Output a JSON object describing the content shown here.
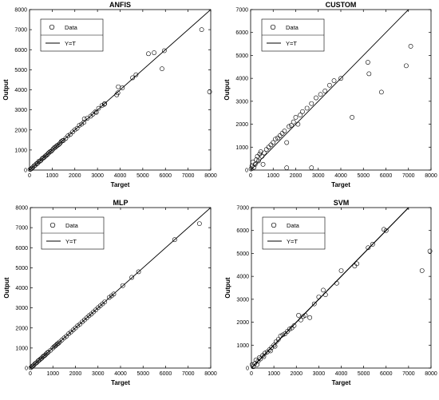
{
  "chart_data": [
    {
      "type": "scatter",
      "title": "ANFIS",
      "xlabel": "Target",
      "ylabel": "Output",
      "xlim": [
        0,
        8000
      ],
      "ylim": [
        0,
        8000
      ],
      "xticks": [
        "0",
        "1000",
        "2000",
        "3000",
        "4000",
        "5000",
        "6000",
        "7000",
        "8000"
      ],
      "yticks": [
        "0",
        "1000",
        "2000",
        "3000",
        "4000",
        "5000",
        "6000",
        "7000",
        "8000"
      ],
      "grid": false,
      "legend": {
        "placement": "top-left",
        "boxed": true,
        "entries": [
          "Data",
          "Y=T"
        ]
      },
      "series": [
        {
          "name": "Data",
          "marker": "open-circle",
          "points": [
            [
              20,
              30
            ],
            [
              60,
              50
            ],
            [
              100,
              90
            ],
            [
              150,
              140
            ],
            [
              200,
              210
            ],
            [
              250,
              240
            ],
            [
              300,
              310
            ],
            [
              350,
              330
            ],
            [
              400,
              420
            ],
            [
              450,
              440
            ],
            [
              500,
              480
            ],
            [
              550,
              560
            ],
            [
              600,
              600
            ],
            [
              650,
              640
            ],
            [
              700,
              700
            ],
            [
              750,
              740
            ],
            [
              800,
              790
            ],
            [
              850,
              860
            ],
            [
              900,
              910
            ],
            [
              950,
              930
            ],
            [
              1000,
              990
            ],
            [
              1050,
              1060
            ],
            [
              1100,
              1120
            ],
            [
              1150,
              1140
            ],
            [
              1200,
              1210
            ],
            [
              1250,
              1240
            ],
            [
              1300,
              1280
            ],
            [
              1350,
              1340
            ],
            [
              1400,
              1420
            ],
            [
              1450,
              1460
            ],
            [
              1500,
              1480
            ],
            [
              1600,
              1580
            ],
            [
              1700,
              1710
            ],
            [
              1800,
              1780
            ],
            [
              1900,
              1900
            ],
            [
              2000,
              2010
            ],
            [
              2100,
              2080
            ],
            [
              2200,
              2230
            ],
            [
              2300,
              2290
            ],
            [
              2400,
              2380
            ],
            [
              2420,
              2550
            ],
            [
              2550,
              2580
            ],
            [
              2700,
              2690
            ],
            [
              2800,
              2790
            ],
            [
              2900,
              2900
            ],
            [
              2950,
              2880
            ],
            [
              3050,
              3080
            ],
            [
              3200,
              3220
            ],
            [
              3300,
              3280
            ],
            [
              3320,
              3310
            ],
            [
              3850,
              3750
            ],
            [
              3900,
              3850
            ],
            [
              3920,
              4150
            ],
            [
              4100,
              4100
            ],
            [
              4550,
              4600
            ],
            [
              4700,
              4750
            ],
            [
              5250,
              5800
            ],
            [
              5500,
              5850
            ],
            [
              5850,
              5050
            ],
            [
              5950,
              5950
            ],
            [
              7600,
              7000
            ],
            [
              7950,
              3900
            ]
          ]
        },
        {
          "name": "Y=T",
          "line": [
            [
              0,
              0
            ],
            [
              8000,
              8000
            ]
          ]
        }
      ]
    },
    {
      "type": "scatter",
      "title": "CUSTOM",
      "xlabel": "Target",
      "ylabel": "Output",
      "xlim": [
        0,
        8000
      ],
      "ylim": [
        0,
        7000
      ],
      "xticks": [
        "0",
        "1000",
        "2000",
        "3000",
        "4000",
        "5000",
        "6000",
        "7000",
        "8000"
      ],
      "yticks": [
        "0",
        "1000",
        "2000",
        "3000",
        "4000",
        "5000",
        "6000",
        "7000"
      ],
      "grid": false,
      "legend": {
        "placement": "top-left",
        "boxed": true,
        "entries": [
          "Data",
          "Y=T"
        ]
      },
      "series": [
        {
          "name": "Data",
          "marker": "open-circle",
          "points": [
            [
              20,
              50
            ],
            [
              60,
              180
            ],
            [
              100,
              350
            ],
            [
              150,
              120
            ],
            [
              200,
              250
            ],
            [
              250,
              450
            ],
            [
              300,
              600
            ],
            [
              350,
              400
            ],
            [
              400,
              700
            ],
            [
              450,
              800
            ],
            [
              500,
              600
            ],
            [
              550,
              250
            ],
            [
              600,
              750
            ],
            [
              700,
              900
            ],
            [
              800,
              1000
            ],
            [
              900,
              1100
            ],
            [
              1000,
              1200
            ],
            [
              1100,
              1350
            ],
            [
              1200,
              1400
            ],
            [
              1300,
              1500
            ],
            [
              1400,
              1600
            ],
            [
              1500,
              1700
            ],
            [
              1600,
              1200
            ],
            [
              1700,
              1900
            ],
            [
              1800,
              1950
            ],
            [
              1900,
              2100
            ],
            [
              2000,
              2300
            ],
            [
              2100,
              2000
            ],
            [
              2200,
              2400
            ],
            [
              2300,
              2550
            ],
            [
              2500,
              2700
            ],
            [
              2700,
              2900
            ],
            [
              2900,
              3150
            ],
            [
              3100,
              3300
            ],
            [
              3300,
              3450
            ],
            [
              3500,
              3700
            ],
            [
              3700,
              3900
            ],
            [
              4000,
              4000
            ],
            [
              4500,
              2300
            ],
            [
              5200,
              4700
            ],
            [
              5250,
              4200
            ],
            [
              5800,
              3400
            ],
            [
              6900,
              4550
            ],
            [
              7100,
              5400
            ],
            [
              1600,
              100
            ],
            [
              2700,
              100
            ]
          ]
        },
        {
          "name": "Y=T",
          "line": [
            [
              0,
              0
            ],
            [
              7000,
              7000
            ]
          ]
        }
      ]
    },
    {
      "type": "scatter",
      "title": "MLP",
      "xlabel": "Target",
      "ylabel": "Output",
      "xlim": [
        0,
        8000
      ],
      "ylim": [
        0,
        8000
      ],
      "xticks": [
        "0",
        "1000",
        "2000",
        "3000",
        "4000",
        "5000",
        "6000",
        "7000",
        "8000"
      ],
      "yticks": [
        "0",
        "1000",
        "2000",
        "3000",
        "4000",
        "5000",
        "6000",
        "7000",
        "8000"
      ],
      "grid": false,
      "legend": {
        "placement": "top-left",
        "boxed": true,
        "entries": [
          "Data",
          "Y=T"
        ]
      },
      "series": [
        {
          "name": "Data",
          "marker": "open-circle",
          "points": [
            [
              20,
              20
            ],
            [
              60,
              60
            ],
            [
              100,
              100
            ],
            [
              150,
              140
            ],
            [
              200,
              210
            ],
            [
              250,
              250
            ],
            [
              300,
              290
            ],
            [
              350,
              360
            ],
            [
              400,
              400
            ],
            [
              450,
              450
            ],
            [
              500,
              490
            ],
            [
              550,
              560
            ],
            [
              600,
              600
            ],
            [
              650,
              640
            ],
            [
              700,
              700
            ],
            [
              750,
              760
            ],
            [
              800,
              800
            ],
            [
              900,
              890
            ],
            [
              1000,
              1000
            ],
            [
              1050,
              1060
            ],
            [
              1100,
              1100
            ],
            [
              1150,
              1150
            ],
            [
              1200,
              1210
            ],
            [
              1250,
              1240
            ],
            [
              1300,
              1300
            ],
            [
              1400,
              1400
            ],
            [
              1500,
              1500
            ],
            [
              1600,
              1590
            ],
            [
              1700,
              1710
            ],
            [
              1800,
              1800
            ],
            [
              1900,
              1900
            ],
            [
              2000,
              2000
            ],
            [
              2100,
              2110
            ],
            [
              2200,
              2190
            ],
            [
              2300,
              2300
            ],
            [
              2400,
              2400
            ],
            [
              2500,
              2500
            ],
            [
              2600,
              2610
            ],
            [
              2700,
              2690
            ],
            [
              2800,
              2800
            ],
            [
              2900,
              2900
            ],
            [
              3000,
              3010
            ],
            [
              3100,
              3100
            ],
            [
              3200,
              3200
            ],
            [
              3300,
              3300
            ],
            [
              3500,
              3520
            ],
            [
              3600,
              3600
            ],
            [
              3700,
              3690
            ],
            [
              4100,
              4110
            ],
            [
              4500,
              4520
            ],
            [
              4800,
              4800
            ],
            [
              6400,
              6400
            ],
            [
              7500,
              7200
            ]
          ]
        },
        {
          "name": "Y=T",
          "line": [
            [
              0,
              0
            ],
            [
              8000,
              8000
            ]
          ]
        }
      ]
    },
    {
      "type": "scatter",
      "title": "SVM",
      "xlabel": "Target",
      "ylabel": "Output",
      "xlim": [
        0,
        8000
      ],
      "ylim": [
        0,
        7000
      ],
      "xticks": [
        "0",
        "1000",
        "2000",
        "3000",
        "4000",
        "5000",
        "6000",
        "7000",
        "8000"
      ],
      "yticks": [
        "0",
        "1000",
        "2000",
        "3000",
        "4000",
        "5000",
        "6000",
        "7000"
      ],
      "grid": false,
      "legend": {
        "placement": "top-left",
        "boxed": true,
        "entries": [
          "Data",
          "Y=T"
        ]
      },
      "series": [
        {
          "name": "Data",
          "marker": "open-circle",
          "points": [
            [
              30,
              150
            ],
            [
              80,
              60
            ],
            [
              150,
              200
            ],
            [
              200,
              350
            ],
            [
              250,
              150
            ],
            [
              300,
              300
            ],
            [
              350,
              450
            ],
            [
              400,
              400
            ],
            [
              500,
              550
            ],
            [
              550,
              500
            ],
            [
              600,
              650
            ],
            [
              700,
              700
            ],
            [
              800,
              800
            ],
            [
              850,
              750
            ],
            [
              900,
              900
            ],
            [
              1000,
              1000
            ],
            [
              1050,
              950
            ],
            [
              1100,
              1150
            ],
            [
              1200,
              1250
            ],
            [
              1300,
              1400
            ],
            [
              1400,
              1450
            ],
            [
              1500,
              1500
            ],
            [
              1600,
              1600
            ],
            [
              1700,
              1700
            ],
            [
              1800,
              1750
            ],
            [
              1900,
              1850
            ],
            [
              2100,
              2300
            ],
            [
              2200,
              2100
            ],
            [
              2300,
              2250
            ],
            [
              2400,
              2300
            ],
            [
              2600,
              2200
            ],
            [
              2800,
              2800
            ],
            [
              3000,
              3100
            ],
            [
              3200,
              3400
            ],
            [
              3300,
              3200
            ],
            [
              3800,
              3700
            ],
            [
              4000,
              4250
            ],
            [
              4600,
              4450
            ],
            [
              4700,
              4550
            ],
            [
              5200,
              5250
            ],
            [
              5400,
              5400
            ],
            [
              5900,
              6050
            ],
            [
              6000,
              6000
            ],
            [
              7600,
              4250
            ],
            [
              7950,
              5100
            ]
          ]
        },
        {
          "name": "Y=T",
          "line": [
            [
              0,
              0
            ],
            [
              7000,
              7000
            ]
          ]
        }
      ]
    }
  ]
}
